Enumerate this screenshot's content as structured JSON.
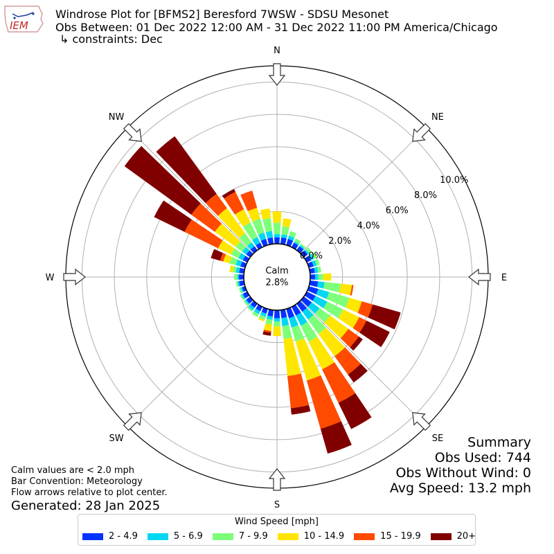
{
  "header": {
    "title": "Windrose Plot for [BFMS2] Beresford 7WSW - SDSU Mesonet",
    "obs_between": "Obs Between: 01 Dec 2022 12:00 AM - 31 Dec 2022 11:00 PM America/Chicago",
    "constraints": "↳ constraints: Dec"
  },
  "logo": {
    "text": "IEM",
    "icon": "iowa-state-outline-icon"
  },
  "summary": {
    "title": "Summary",
    "obs_used": "Obs Used: 744",
    "obs_without_wind": "Obs Without Wind: 0",
    "avg_speed": "Avg Speed: 13.2 mph"
  },
  "notes": {
    "calm": "Calm values are < 2.0 mph",
    "bar_convention": "Bar Convention: Meteorology",
    "flow_arrows": "Flow arrows relative to plot center.",
    "generated": "Generated: 28 Jan 2025"
  },
  "legend": {
    "title": "Wind Speed [mph]",
    "items": [
      {
        "label": "2 - 4.9",
        "color": "#0433ff"
      },
      {
        "label": "5 - 6.9",
        "color": "#02d7f2"
      },
      {
        "label": "7 - 9.9",
        "color": "#7dff7a"
      },
      {
        "label": "10 - 14.9",
        "color": "#ffe600"
      },
      {
        "label": "15 - 19.9",
        "color": "#ff4a00"
      },
      {
        "label": "20+",
        "color": "#800000"
      }
    ]
  },
  "chart_data": {
    "type": "windrose",
    "direction_bins": 36,
    "bin_width_deg": 10,
    "calm_label": "Calm",
    "calm_value": "2.8%",
    "calm_percent": 2.8,
    "compass_labels": [
      "N",
      "NE",
      "E",
      "SE",
      "S",
      "SW",
      "W",
      "NW"
    ],
    "radial_ticks": [
      "0.0%",
      "2.0%",
      "4.0%",
      "6.0%",
      "8.0%",
      "10.0%"
    ],
    "radial_tick_values": [
      0,
      2,
      4,
      6,
      8,
      10
    ],
    "radial_max": 11,
    "grid": true,
    "speed_bins": [
      "2 - 4.9",
      "5 - 6.9",
      "7 - 9.9",
      "10 - 14.9",
      "15 - 19.9",
      "20+"
    ],
    "cumulative_percent_by_direction": {
      "0": [
        0.4,
        0.6,
        1.3,
        2.0,
        2.0,
        2.0
      ],
      "10": [
        0.4,
        0.6,
        1.1,
        1.6,
        1.6,
        1.6
      ],
      "20": [
        0.4,
        0.6,
        0.9,
        0.9,
        0.9,
        0.9
      ],
      "30": [
        0.3,
        0.4,
        0.6,
        0.6,
        0.6,
        0.6
      ],
      "40": [
        0.3,
        0.4,
        0.5,
        0.5,
        0.5,
        0.5
      ],
      "50": [
        0.3,
        0.4,
        0.6,
        0.6,
        0.6,
        0.6
      ],
      "60": [
        0.3,
        0.5,
        0.7,
        0.7,
        0.7,
        0.7
      ],
      "70": [
        0.3,
        0.5,
        0.7,
        0.7,
        0.7,
        0.7
      ],
      "80": [
        0.3,
        0.5,
        0.7,
        0.7,
        0.7,
        0.7
      ],
      "90": [
        0.3,
        0.5,
        0.8,
        1.3,
        1.3,
        1.3
      ],
      "100": [
        0.5,
        0.9,
        1.9,
        2.6,
        2.7,
        2.7
      ],
      "110": [
        0.6,
        1.3,
        2.6,
        3.4,
        4.1,
        5.9
      ],
      "120": [
        0.6,
        1.4,
        2.5,
        3.6,
        4.1,
        5.7
      ],
      "130": [
        0.6,
        1.2,
        2.0,
        3.4,
        4.2,
        4.5
      ],
      "140": [
        0.6,
        1.2,
        2.3,
        4.0,
        5.4,
        6.0
      ],
      "150": [
        0.6,
        1.3,
        2.4,
        4.3,
        6.6,
        8.4
      ],
      "160": [
        0.6,
        1.2,
        2.1,
        4.6,
        7.7,
        9.3
      ],
      "170": [
        0.5,
        1.0,
        1.8,
        4.1,
        6.1,
        6.5
      ],
      "180": [
        0.5,
        0.7,
        1.0,
        1.6,
        1.6,
        1.6
      ],
      "190": [
        0.4,
        0.6,
        0.9,
        1.3,
        1.4,
        1.6
      ],
      "200": [
        0.3,
        0.5,
        0.7,
        0.8,
        0.8,
        0.8
      ],
      "210": [
        0.3,
        0.5,
        0.7,
        0.7,
        0.7,
        0.7
      ],
      "220": [
        0.3,
        0.5,
        0.6,
        0.6,
        0.6,
        0.6
      ],
      "230": [
        0.3,
        0.4,
        0.5,
        0.5,
        0.5,
        0.5
      ],
      "240": [
        0.3,
        0.4,
        0.5,
        0.5,
        0.5,
        0.5
      ],
      "250": [
        0.2,
        0.3,
        0.4,
        0.4,
        0.4,
        0.4
      ],
      "260": [
        0.3,
        0.4,
        0.5,
        0.5,
        0.5,
        0.5
      ],
      "270": [
        0.3,
        0.4,
        0.6,
        0.6,
        0.6,
        0.6
      ],
      "280": [
        0.3,
        0.5,
        0.7,
        0.9,
        0.9,
        0.9
      ],
      "290": [
        0.3,
        0.6,
        1.0,
        1.4,
        1.6,
        2.2
      ],
      "300": [
        0.3,
        0.6,
        1.1,
        2.0,
        4.3,
        6.4
      ],
      "310": [
        0.3,
        0.6,
        1.1,
        2.7,
        4.5,
        9.6
      ],
      "320": [
        0.3,
        0.6,
        1.3,
        3.2,
        4.3,
        8.7
      ],
      "330": [
        0.3,
        0.7,
        1.7,
        2.6,
        3.8,
        4.0
      ],
      "340": [
        0.4,
        0.8,
        1.7,
        2.4,
        3.5,
        3.5
      ],
      "350": [
        0.4,
        0.8,
        1.6,
        2.2,
        2.2,
        2.2
      ]
    }
  }
}
